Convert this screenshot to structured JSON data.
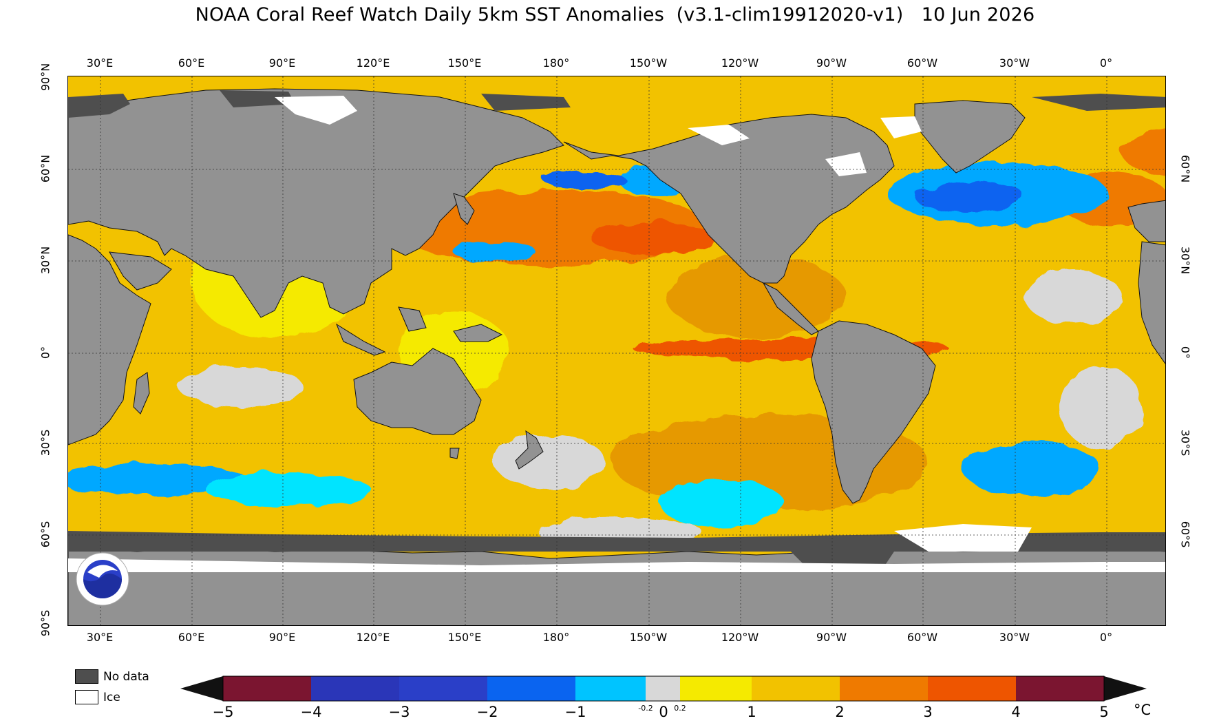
{
  "title": "NOAA Coral Reef Watch Daily 5km SST Anomalies  (v3.1-clim19912020-v1)   10 Jun 2026",
  "lon_ticks": [
    "30°E",
    "60°E",
    "90°E",
    "120°E",
    "150°E",
    "180°",
    "150°W",
    "120°W",
    "90°W",
    "60°W",
    "30°W",
    "0°"
  ],
  "lat_ticks": [
    "90°N",
    "60°N",
    "30°N",
    "0°",
    "30°S",
    "60°S",
    "90°S"
  ],
  "lat_ticks_right": [
    "60°N",
    "30°N",
    "0°",
    "30°S",
    "60°S"
  ],
  "legend": {
    "no_data": "No data",
    "ice": "Ice"
  },
  "colorbar": {
    "labels": [
      "−5",
      "−4",
      "−3",
      "−2",
      "−1",
      "0",
      "1",
      "2",
      "3",
      "4",
      "5"
    ],
    "small_labels": [
      "-0.2",
      "0.2"
    ],
    "unit": "°C",
    "colors": [
      "#7b1530",
      "#2a36b8",
      "#2a3fc8",
      "#0a64f0",
      "#00a8ff",
      "#00e4ff",
      "#d8d8d8",
      "#f5ea00",
      "#f2c200",
      "#e69900",
      "#ef7a00",
      "#ee5500",
      "#7b1530"
    ]
  },
  "colors": {
    "land": "#929292",
    "no_data": "#4e4e4e",
    "ice": "#ffffff",
    "ocean_base": "#f2c200"
  }
}
